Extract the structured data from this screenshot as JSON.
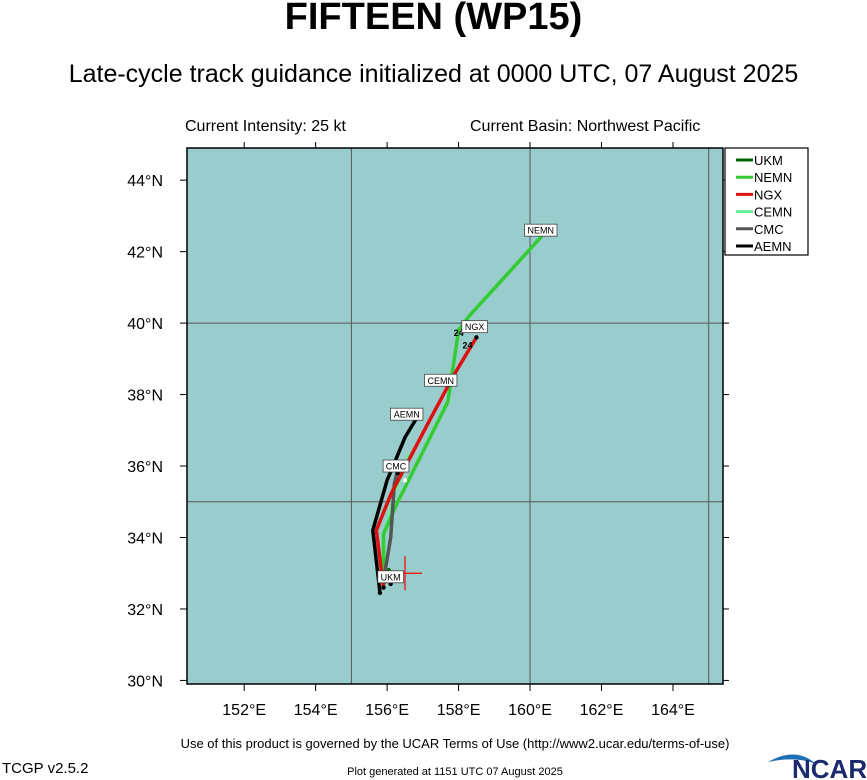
{
  "title": "FIFTEEN (WP15)",
  "subtitle": "Late-cycle track guidance initialized at 0000 UTC, 07 August 2025",
  "current_intensity": "Current Intensity: 25 kt",
  "current_basin": "Current Basin: Northwest Pacific",
  "terms": "Use of this product is governed by the UCAR Terms of Use (http://www2.ucar.edu/terms-of-use)",
  "version": "TCGP v2.5.2",
  "generated": "Plot generated at 1151 UTC   07 August 2025",
  "logo_text": "NCAR",
  "colors": {
    "ocean": "#99cccc",
    "grid": "#555555",
    "UKM": "#006400",
    "NEMN": "#33cc33",
    "NGX": "#dd1111",
    "CEMN": "#66ee99",
    "CMC": "#555555",
    "AEMN": "#000000",
    "current_position": "#ff0000"
  },
  "chart_data": {
    "type": "map",
    "x_axis": {
      "min": 150.4,
      "max": 165.4,
      "ticks": [
        152,
        154,
        156,
        158,
        160,
        162,
        164
      ],
      "tick_labels": [
        "152°E",
        "154°E",
        "156°E",
        "158°E",
        "160°E",
        "162°E",
        "164°E"
      ]
    },
    "y_axis": {
      "min": 29.9,
      "max": 44.9,
      "ticks": [
        30,
        32,
        34,
        36,
        38,
        40,
        42,
        44
      ],
      "tick_labels": [
        "30°N",
        "32°N",
        "34°N",
        "36°N",
        "38°N",
        "40°N",
        "42°N",
        "44°N"
      ]
    },
    "gridlines": {
      "lon": [
        155,
        160,
        165
      ],
      "lat": [
        35,
        40
      ]
    },
    "legend_position": "right",
    "current_position": {
      "lon": 156.5,
      "lat": 33.0
    },
    "series": [
      {
        "name": "UKM",
        "points": [
          [
            155.9,
            32.7
          ],
          [
            156.0,
            32.9
          ],
          [
            156.05,
            33.1
          ]
        ],
        "label_point": [
          156.1,
          32.9
        ],
        "dots": []
      },
      {
        "name": "NEMN",
        "points": [
          [
            155.9,
            32.7
          ],
          [
            155.9,
            34.1
          ],
          [
            156.3,
            35.0
          ],
          [
            157.7,
            37.8
          ],
          [
            158.0,
            39.8
          ],
          [
            158.3,
            40.2
          ],
          [
            160.3,
            42.4
          ]
        ],
        "label_point": [
          160.3,
          42.6
        ],
        "dots": [
          [
            156.5,
            35.6
          ]
        ]
      },
      {
        "name": "NGX",
        "points": [
          [
            155.9,
            32.6
          ],
          [
            155.7,
            34.2
          ],
          [
            156.1,
            35.2
          ],
          [
            157.2,
            37.3
          ],
          [
            157.9,
            38.6
          ],
          [
            158.5,
            39.6
          ]
        ],
        "label_point": [
          158.45,
          39.9
        ],
        "dots": [
          [
            155.9,
            32.6
          ],
          [
            158.5,
            39.6
          ]
        ]
      },
      {
        "name": "CEMN",
        "points": [
          [
            155.95,
            32.75
          ],
          [
            155.9,
            34.0
          ],
          [
            156.2,
            35.2
          ],
          [
            156.6,
            36.3
          ]
        ],
        "label_point": [
          157.5,
          38.4
        ],
        "dots": []
      },
      {
        "name": "CMC",
        "points": [
          [
            155.9,
            32.8
          ],
          [
            156.1,
            34.0
          ],
          [
            156.2,
            35.5
          ],
          [
            156.3,
            35.9
          ]
        ],
        "label_point": [
          156.25,
          36.0
        ],
        "dots": [
          [
            155.9,
            32.8
          ],
          [
            156.3,
            35.8
          ]
        ]
      },
      {
        "name": "AEMN",
        "points": [
          [
            155.8,
            32.45
          ],
          [
            155.6,
            34.2
          ],
          [
            156.0,
            35.6
          ],
          [
            156.5,
            36.8
          ],
          [
            156.8,
            37.3
          ]
        ],
        "label_point": [
          156.55,
          37.45
        ],
        "dots": [
          [
            155.8,
            32.45
          ],
          [
            156.1,
            32.7
          ],
          [
            156.3,
            32.8
          ]
        ]
      }
    ],
    "annotations": [
      {
        "text": "24",
        "lon": 158.0,
        "lat": 39.75
      },
      {
        "text": "24",
        "lon": 158.25,
        "lat": 39.4
      }
    ]
  }
}
